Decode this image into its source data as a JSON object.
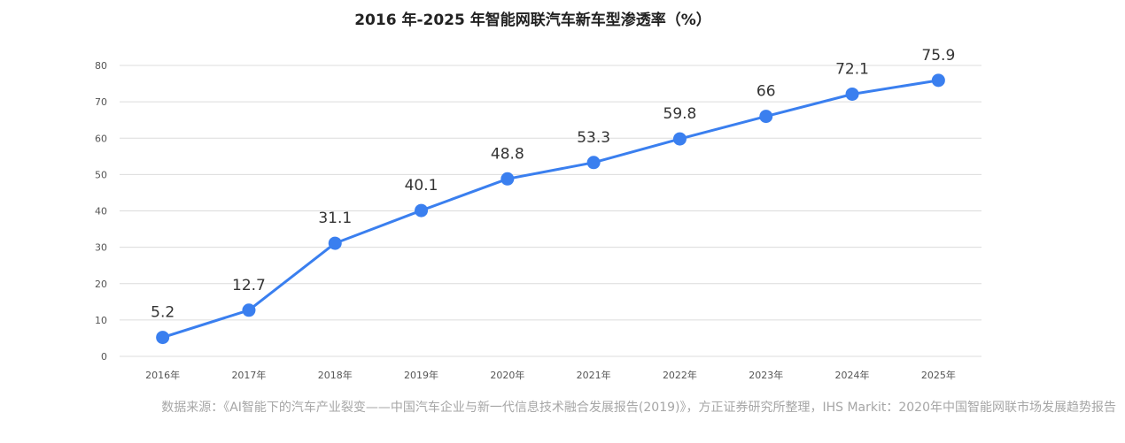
{
  "chart_data": {
    "type": "line",
    "title": "2016 年-2025 年智能网联汽车新车型渗透率（%）",
    "categories": [
      "2016年",
      "2017年",
      "2018年",
      "2019年",
      "2020年",
      "2021年",
      "2022年",
      "2023年",
      "2024年",
      "2025年"
    ],
    "series": [
      {
        "values": [
          5.2,
          12.7,
          31.1,
          40.1,
          48.8,
          53.3,
          59.8,
          66,
          72.1,
          75.9
        ]
      }
    ],
    "data_labels": [
      "5.2",
      "12.7",
      "31.1",
      "40.1",
      "48.8",
      "53.3",
      "59.8",
      "66",
      "72.1",
      "75.9"
    ],
    "ylim": [
      0,
      80
    ],
    "y_ticks": [
      "0",
      "10",
      "20",
      "30",
      "40",
      "50",
      "60",
      "70",
      "80"
    ],
    "grid": true,
    "legend": "none",
    "colors": {
      "line": "#3a7fef",
      "grid": "#dcdcdc"
    }
  },
  "source_note": "数据来源：《AI智能下的汽车产业裂变——中国汽车企业与新一代信息技术融合发展报告(2019)》，方正证券研究所整理，IHS Markit：2020年中国智能网联市场发展趋势报告"
}
